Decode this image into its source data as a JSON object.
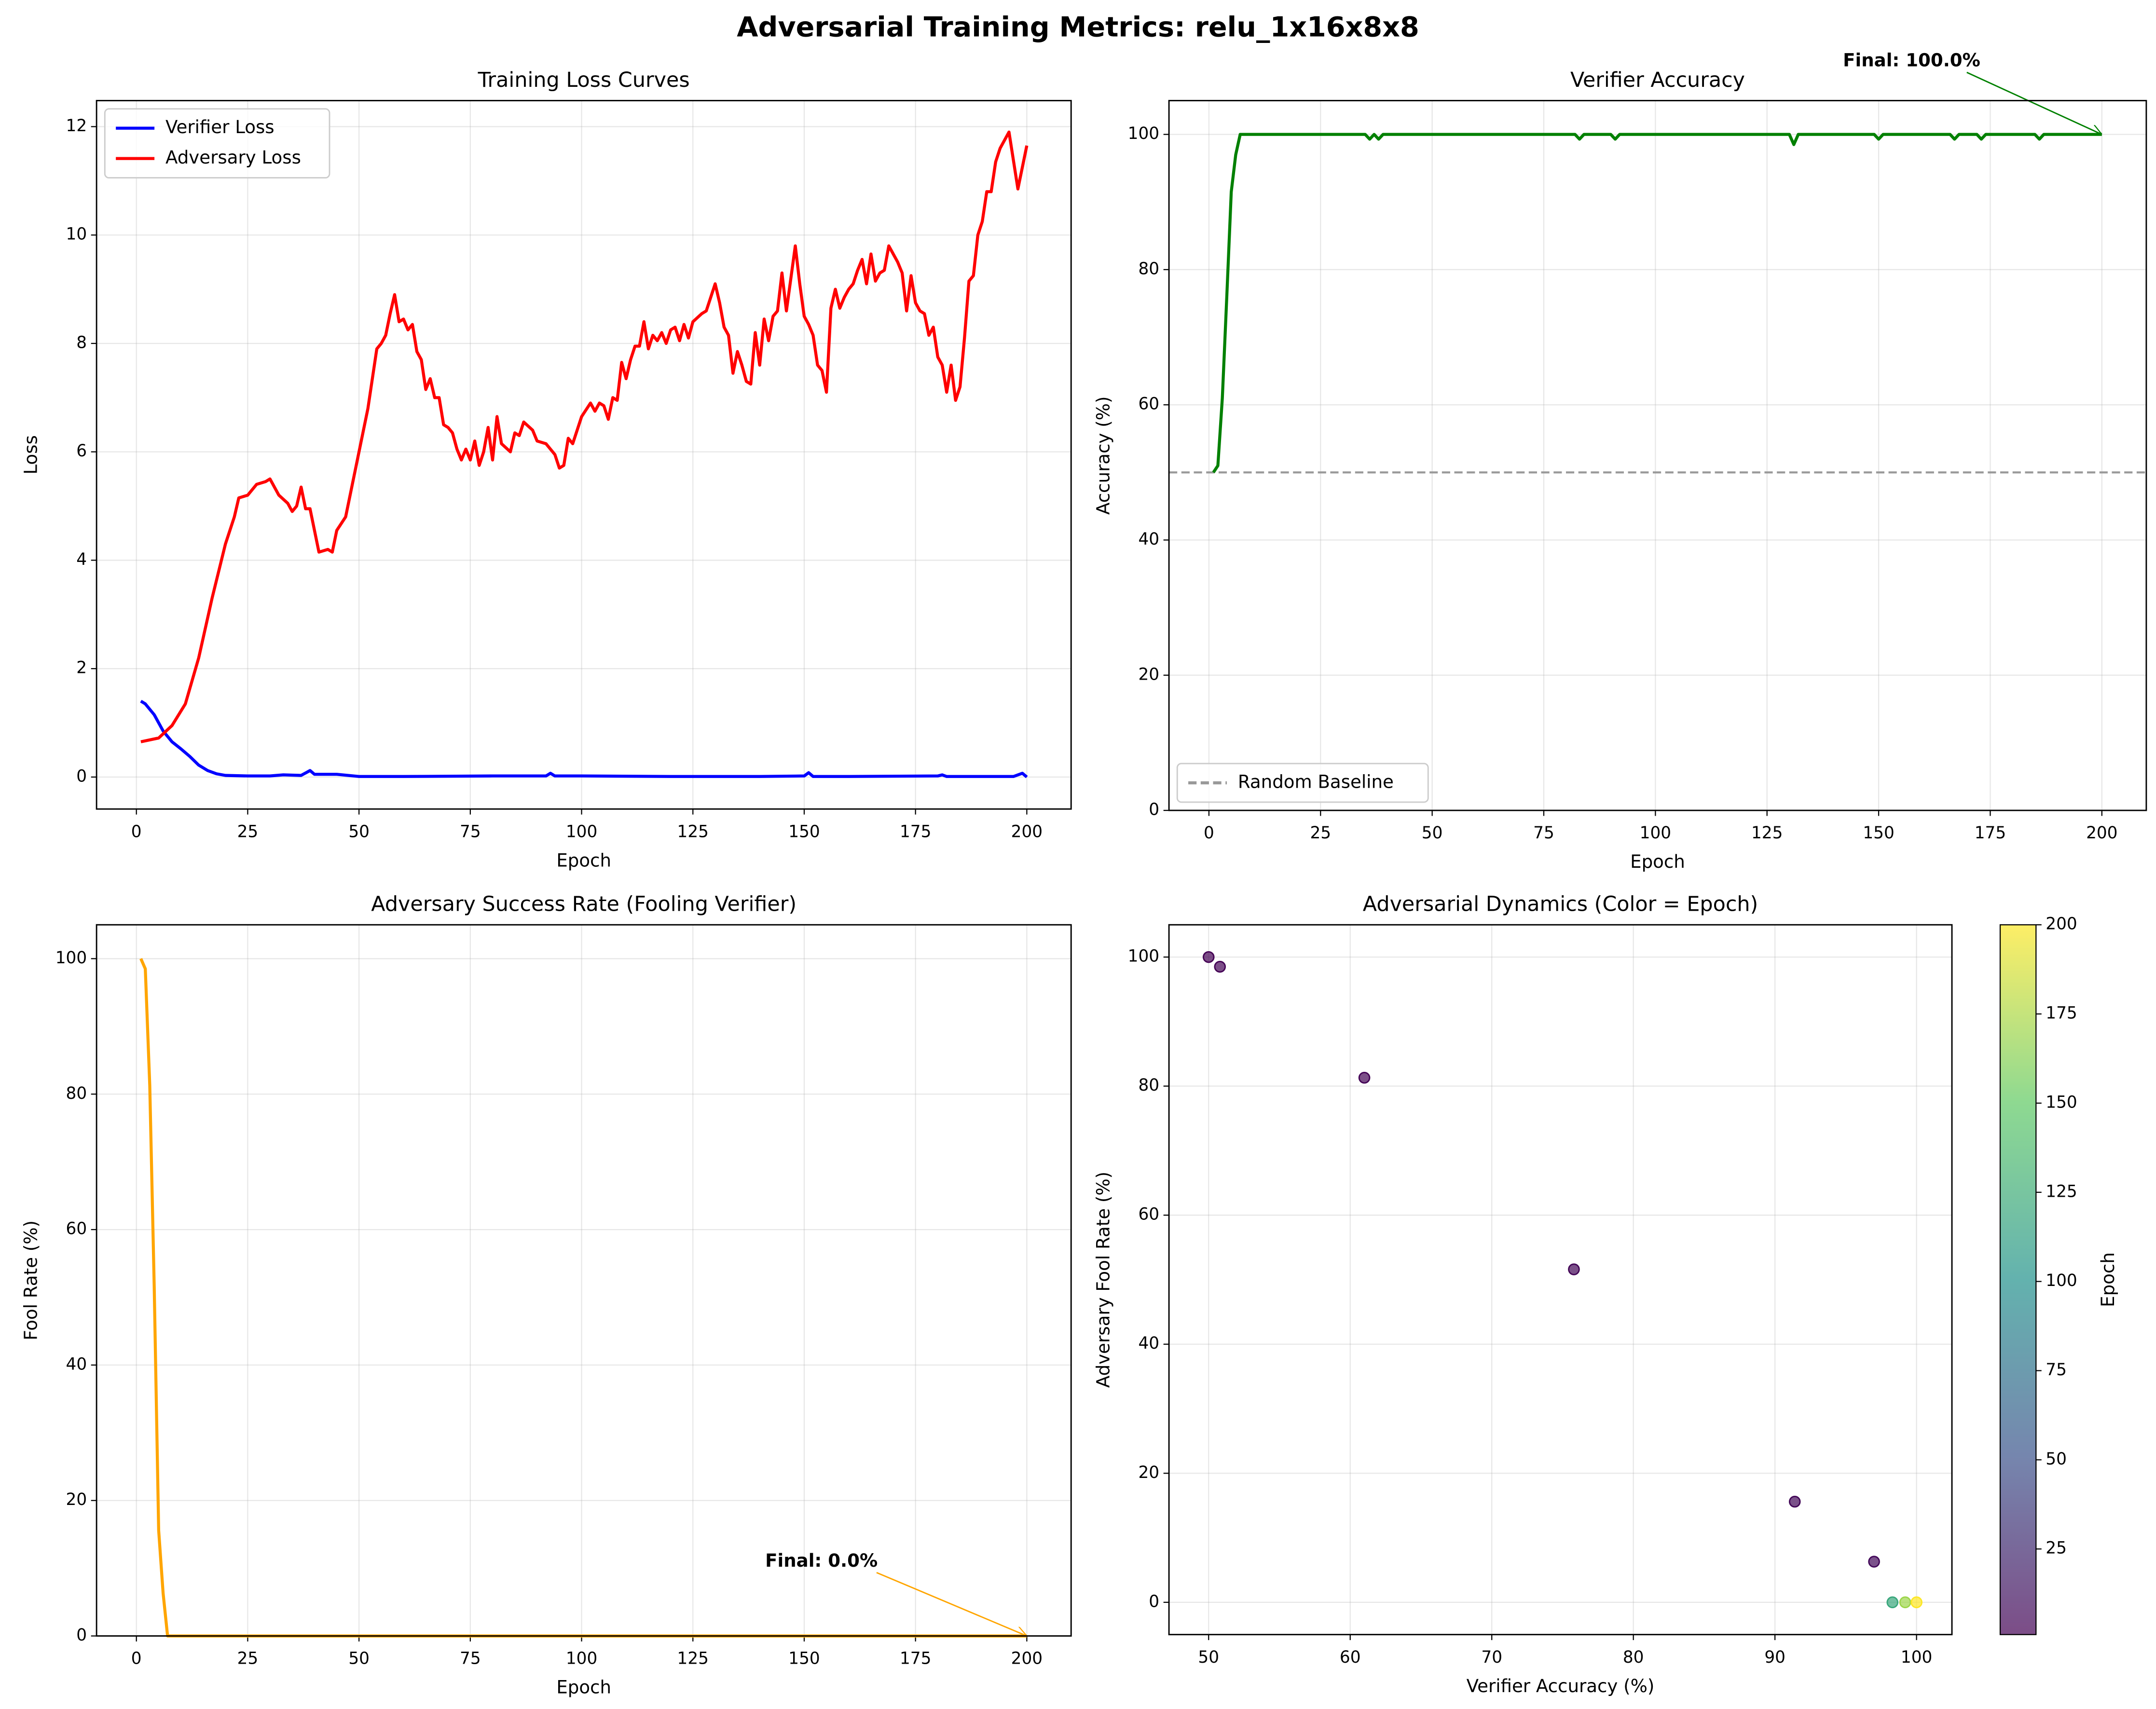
{
  "suptitle": "Adversarial Training Metrics: relu_1x16x8x8",
  "chart_data": [
    {
      "type": "line",
      "title": "Training Loss Curves",
      "xlabel": "Epoch",
      "ylabel": "Loss",
      "xlim": [
        -8.95,
        209.95
      ],
      "ylim": [
        -0.59,
        12.48
      ],
      "xticks": [
        0,
        25,
        50,
        75,
        100,
        125,
        150,
        175,
        200
      ],
      "yticks": [
        0,
        2,
        4,
        6,
        8,
        10,
        12
      ],
      "grid": true,
      "legend": "upper left",
      "series": [
        {
          "name": "Verifier Loss",
          "color": "#0000ff",
          "x": [
            1,
            2,
            4,
            6,
            8,
            10,
            12,
            14,
            16,
            18,
            20,
            25,
            30,
            33,
            37,
            39,
            40,
            45,
            50,
            60,
            80,
            92,
            93,
            94,
            100,
            120,
            140,
            150,
            151,
            152,
            160,
            180,
            181,
            182,
            197,
            199,
            200
          ],
          "values": [
            1.4,
            1.35,
            1.15,
            0.85,
            0.65,
            0.52,
            0.38,
            0.22,
            0.12,
            0.06,
            0.03,
            0.02,
            0.02,
            0.04,
            0.03,
            0.12,
            0.05,
            0.05,
            0.01,
            0.01,
            0.02,
            0.02,
            0.07,
            0.02,
            0.02,
            0.01,
            0.01,
            0.02,
            0.08,
            0.01,
            0.01,
            0.02,
            0.04,
            0.01,
            0.01,
            0.07,
            0.0
          ]
        },
        {
          "name": "Adversary Loss",
          "color": "#ff0000",
          "x": [
            1,
            5,
            8,
            11,
            14,
            17,
            20,
            22,
            23,
            25,
            27,
            29,
            30,
            32,
            34,
            35,
            36,
            37,
            38,
            39,
            41,
            43,
            44,
            45,
            47,
            48,
            50,
            52,
            54,
            55,
            56,
            57,
            58,
            59,
            60,
            61,
            62,
            63,
            64,
            65,
            66,
            67,
            68,
            69,
            70,
            71,
            72,
            73,
            74,
            75,
            76,
            77,
            78,
            79,
            80,
            81,
            82,
            84,
            85,
            86,
            87,
            89,
            90,
            92,
            94,
            95,
            96,
            97,
            98,
            100,
            102,
            103,
            104,
            105,
            106,
            107,
            108,
            109,
            110,
            111,
            112,
            113,
            114,
            115,
            116,
            117,
            118,
            119,
            120,
            121,
            122,
            123,
            124,
            125,
            127,
            128,
            130,
            131,
            132,
            133,
            134,
            135,
            136,
            137,
            138,
            139,
            140,
            141,
            142,
            143,
            144,
            145,
            146,
            147,
            148,
            149,
            150,
            151,
            152,
            153,
            154,
            155,
            156,
            157,
            158,
            159,
            160,
            161,
            162,
            163,
            164,
            165,
            166,
            167,
            168,
            169,
            170,
            171,
            172,
            173,
            174,
            175,
            176,
            177,
            178,
            179,
            180,
            181,
            182,
            183,
            184,
            185,
            186,
            187,
            188,
            189,
            190,
            191,
            192,
            193,
            194,
            196,
            198,
            200
          ],
          "values": [
            0.65,
            0.72,
            0.95,
            1.35,
            2.2,
            3.3,
            4.3,
            4.8,
            5.15,
            5.2,
            5.4,
            5.45,
            5.5,
            5.2,
            5.05,
            4.9,
            5.0,
            5.35,
            4.95,
            4.95,
            4.15,
            4.2,
            4.15,
            4.55,
            4.8,
            5.2,
            6.0,
            6.8,
            7.9,
            8.0,
            8.15,
            8.55,
            8.9,
            8.4,
            8.45,
            8.25,
            8.35,
            7.85,
            7.7,
            7.15,
            7.35,
            7.0,
            7.0,
            6.5,
            6.45,
            6.35,
            6.05,
            5.85,
            6.05,
            5.85,
            6.2,
            5.75,
            6.0,
            6.45,
            5.85,
            6.65,
            6.15,
            6.0,
            6.35,
            6.3,
            6.55,
            6.4,
            6.2,
            6.15,
            5.95,
            5.7,
            5.75,
            6.25,
            6.15,
            6.65,
            6.9,
            6.75,
            6.9,
            6.85,
            6.6,
            7.0,
            6.95,
            7.65,
            7.35,
            7.7,
            7.95,
            7.95,
            8.4,
            7.9,
            8.15,
            8.05,
            8.2,
            8.0,
            8.25,
            8.3,
            8.05,
            8.35,
            8.1,
            8.4,
            8.55,
            8.6,
            9.1,
            8.75,
            8.3,
            8.15,
            7.45,
            7.85,
            7.6,
            7.3,
            7.25,
            8.2,
            7.6,
            8.45,
            8.05,
            8.5,
            8.6,
            9.3,
            8.6,
            9.2,
            9.8,
            9.1,
            8.5,
            8.35,
            8.15,
            7.6,
            7.5,
            7.1,
            8.65,
            9.0,
            8.65,
            8.85,
            9.0,
            9.1,
            9.35,
            9.55,
            9.1,
            9.65,
            9.15,
            9.3,
            9.35,
            9.8,
            9.65,
            9.5,
            9.3,
            8.6,
            9.25,
            8.75,
            8.6,
            8.55,
            8.15,
            8.3,
            7.75,
            7.6,
            7.1,
            7.6,
            6.95,
            7.2,
            8.1,
            9.15,
            9.25,
            10.0,
            10.25,
            10.8,
            10.8,
            11.35,
            11.6,
            11.9,
            10.85,
            11.65
          ]
        }
      ]
    },
    {
      "type": "line",
      "title": "Verifier Accuracy",
      "xlabel": "Epoch",
      "ylabel": "Accuracy (%)",
      "xlim": [
        -8.95,
        209.95
      ],
      "ylim": [
        0,
        105
      ],
      "xticks": [
        0,
        25,
        50,
        75,
        100,
        125,
        150,
        175,
        200
      ],
      "yticks": [
        0,
        20,
        40,
        60,
        80,
        100
      ],
      "grid": true,
      "legend": "lower left",
      "series": [
        {
          "color": "#008000",
          "x": [
            1,
            2,
            3,
            4,
            5,
            6,
            7,
            35,
            36,
            37,
            38,
            39,
            82,
            83,
            84,
            90,
            91,
            92,
            130,
            131,
            132,
            149,
            150,
            151,
            166,
            167,
            168,
            172,
            173,
            174,
            185,
            186,
            187,
            200
          ],
          "values": [
            50,
            51,
            61,
            76,
            91.5,
            97,
            100,
            100,
            99.3,
            100,
            99.3,
            100,
            100,
            99.3,
            100,
            100,
            99.3,
            100,
            100,
            98.5,
            100,
            100,
            99.3,
            100,
            100,
            99.3,
            100,
            100,
            99.3,
            100,
            100,
            99.3,
            100,
            100
          ]
        }
      ],
      "hlines": [
        {
          "name": "Random Baseline",
          "value": 50,
          "color": "#999999",
          "style": "dashed"
        }
      ],
      "annotations": [
        {
          "text": "Final: 100.0%",
          "x": 200,
          "y": 100,
          "color": "#008000"
        }
      ]
    },
    {
      "type": "line",
      "title": "Adversary Success Rate (Fooling Verifier)",
      "xlabel": "Epoch",
      "ylabel": "Fool Rate (%)",
      "xlim": [
        -8.95,
        209.95
      ],
      "ylim": [
        0,
        105
      ],
      "xticks": [
        0,
        25,
        50,
        75,
        100,
        125,
        150,
        175,
        200
      ],
      "yticks": [
        0,
        20,
        40,
        60,
        80,
        100
      ],
      "grid": true,
      "series": [
        {
          "color": "#ffa500",
          "x": [
            1,
            2,
            3,
            4,
            5,
            6,
            7,
            200
          ],
          "values": [
            100,
            98.5,
            81.3,
            51.6,
            15.6,
            6.3,
            0,
            0
          ]
        }
      ],
      "annotations": [
        {
          "text": "Final: 0.0%",
          "x": 200,
          "y": 0,
          "color": "#ffa500"
        }
      ]
    },
    {
      "type": "scatter",
      "title": "Adversarial Dynamics (Color = Epoch)",
      "xlabel": "Verifier Accuracy (%)",
      "ylabel": "Adversary Fool Rate (%)",
      "xlim": [
        47.2,
        102.5
      ],
      "ylim": [
        -5,
        105
      ],
      "xticks": [
        50,
        60,
        70,
        80,
        90,
        100
      ],
      "yticks": [
        0,
        20,
        40,
        60,
        80,
        100
      ],
      "grid": true,
      "cmap": "viridis",
      "x": [
        50,
        50.8,
        61,
        75.8,
        91.4,
        97,
        98.3,
        99.2,
        100
      ],
      "values": [
        100,
        98.5,
        81.3,
        51.6,
        15.6,
        6.3,
        0,
        0,
        0
      ],
      "c": [
        1,
        2,
        3,
        4,
        5,
        6,
        120,
        170,
        200
      ],
      "colorbar": {
        "label": "Epoch",
        "lim": [
          1,
          200
        ],
        "ticks": [
          25,
          50,
          75,
          100,
          125,
          150,
          175,
          200
        ]
      }
    }
  ]
}
